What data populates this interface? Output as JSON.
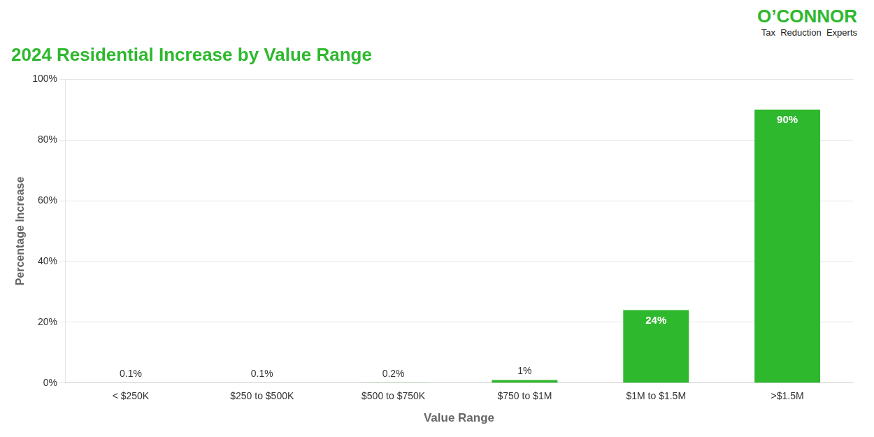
{
  "chart_data": {
    "type": "bar",
    "title": "2024 Residential Increase by Value Range",
    "categories": [
      "< $250K",
      "$250 to $500K",
      "$500 to $750K",
      "$750 to $1M",
      "$1M to $1.5M",
      ">$1.5M"
    ],
    "values": [
      0.1,
      0.1,
      0.2,
      1,
      24,
      90
    ],
    "value_labels": [
      "0.1%",
      "0.1%",
      "0.2%",
      "1%",
      "24%",
      "90%"
    ],
    "data_labels": true,
    "color": "#2eb82e",
    "ylabel": "Percentage Increase",
    "xlabel": "Value Range",
    "ylim": [
      0,
      100
    ],
    "yticks": [
      {
        "value": 0,
        "label": "0%"
      },
      {
        "value": 20,
        "label": "20%"
      },
      {
        "value": 40,
        "label": "40%"
      },
      {
        "value": 60,
        "label": "60%"
      },
      {
        "value": 80,
        "label": "80%"
      },
      {
        "value": 100,
        "label": "100%"
      }
    ],
    "grid": true,
    "annotations": [
      "O’CONNOR",
      "Tax  Reduction  Experts"
    ]
  }
}
